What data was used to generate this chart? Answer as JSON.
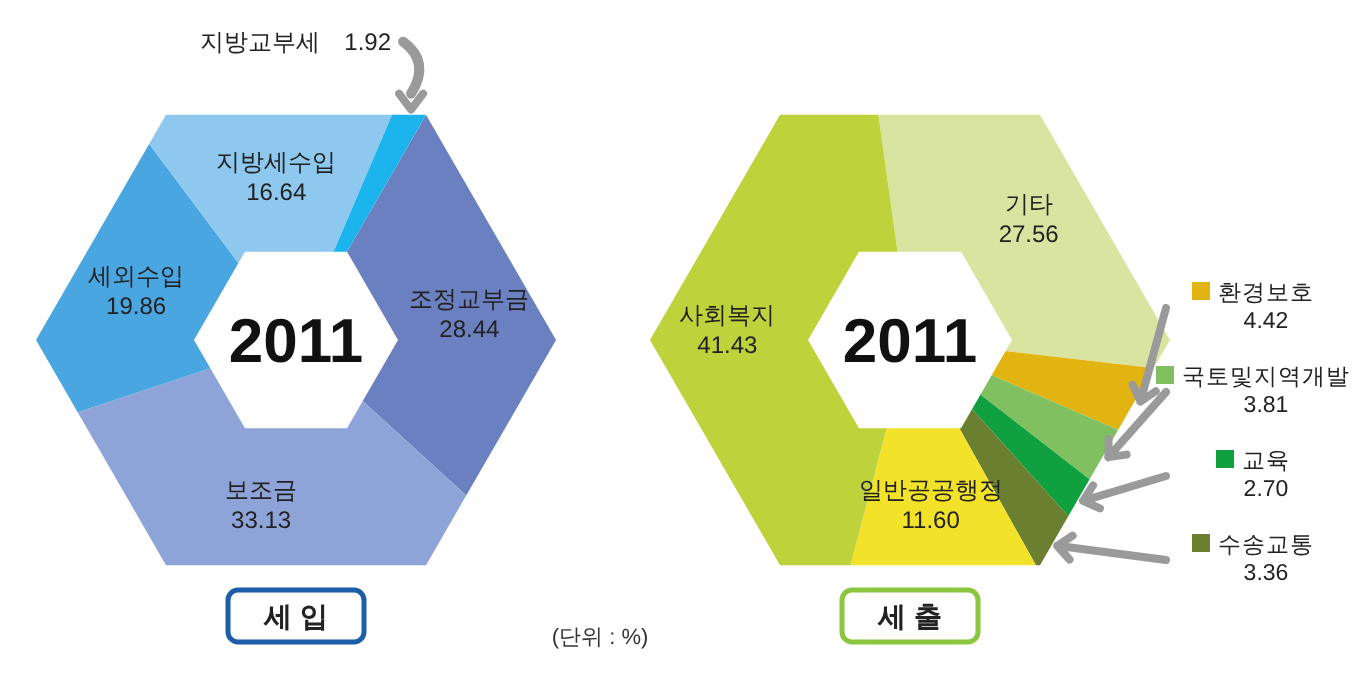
{
  "chart_data": [
    {
      "type": "donut",
      "title": "세 입",
      "categories": [
        "조정교부금",
        "보조금",
        "세외수입",
        "지방세수입",
        "지방교부세"
      ],
      "values": [
        28.44,
        33.13,
        19.86,
        16.64,
        1.92
      ],
      "value_labels": [
        "28.44",
        "33.13",
        "19.86",
        "16.64",
        "1.92"
      ],
      "colors": [
        "#6b80c0",
        "#8ea4d8",
        "#4aa6e0",
        "#8ec8ee",
        "#1cb4ec"
      ],
      "annotations": [
        "2011",
        "(단위 : %)"
      ]
    },
    {
      "type": "donut",
      "title": "세 출",
      "categories": [
        "기타",
        "환경보호",
        "국토및지역개발",
        "교육",
        "수송교통",
        "일반공공행정",
        "사회복지"
      ],
      "values": [
        27.56,
        4.42,
        3.81,
        2.7,
        3.36,
        11.6,
        41.43
      ],
      "value_labels": [
        "27.56",
        "4.42",
        "3.81",
        "2.70",
        "3.36",
        "11.60",
        "41.43"
      ],
      "colors": [
        "#d8e4a0",
        "#e2b412",
        "#80c060",
        "#10a040",
        "#6a8030",
        "#f2e22a",
        "#bed23c"
      ],
      "legend": "right",
      "annotations": [
        "2011"
      ]
    }
  ]
}
